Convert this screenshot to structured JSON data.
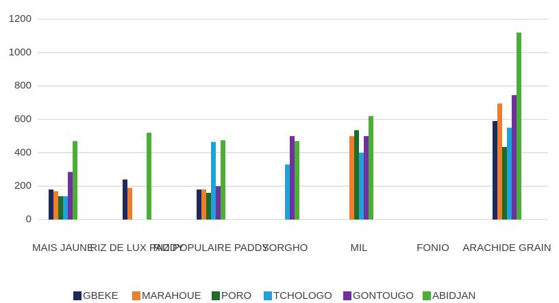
{
  "chart_data": {
    "type": "bar",
    "categories": [
      "MAIS JAUNE",
      "RIZ DE LUX PADDY",
      "RIZ POPULAIRE PADDY",
      "SORGHO",
      "MIL",
      "FONIO",
      "ARACHIDE GRAIN"
    ],
    "series": [
      {
        "name": "GBEKE",
        "color": "#1b2a5a",
        "values": [
          180,
          240,
          180,
          null,
          null,
          null,
          590
        ]
      },
      {
        "name": "MARAHOUE",
        "color": "#ed7d31",
        "values": [
          170,
          190,
          180,
          null,
          500,
          null,
          695
        ]
      },
      {
        "name": "PORO",
        "color": "#1e6b2a",
        "values": [
          140,
          null,
          160,
          null,
          535,
          null,
          435
        ]
      },
      {
        "name": "TCHOLOGO",
        "color": "#1fa2d8",
        "values": [
          140,
          null,
          465,
          330,
          400,
          null,
          550
        ]
      },
      {
        "name": "GONTOUGO",
        "color": "#7030a0",
        "values": [
          285,
          null,
          200,
          500,
          500,
          null,
          745
        ]
      },
      {
        "name": "ABIDJAN",
        "color": "#4caf35",
        "values": [
          470,
          520,
          475,
          470,
          620,
          null,
          1120
        ]
      }
    ],
    "ylim": [
      0,
      1200
    ],
    "yticks": [
      0,
      200,
      400,
      600,
      800,
      1000,
      1200
    ],
    "grid": true,
    "legend": "bottom"
  }
}
